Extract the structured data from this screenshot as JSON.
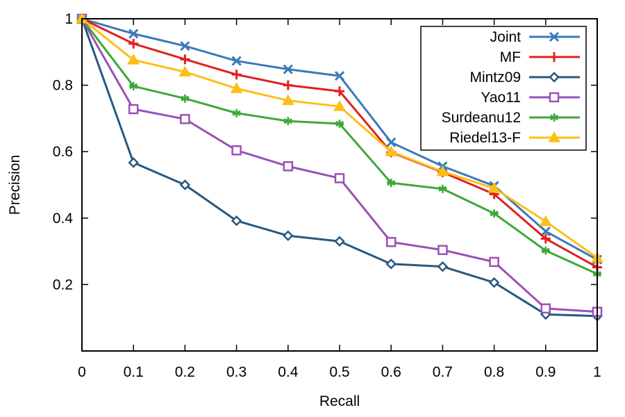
{
  "chart_data": {
    "type": "line",
    "xlabel": "Recall",
    "ylabel": "Precision",
    "xlim": [
      0,
      1
    ],
    "ylim": [
      0,
      1
    ],
    "x_ticks": [
      0,
      0.1,
      0.2,
      0.3,
      0.4,
      0.5,
      0.6,
      0.7,
      0.8,
      0.9,
      1
    ],
    "x_tick_labels": [
      "0",
      "0.1",
      "0.2",
      "0.3",
      "0.4",
      "0.5",
      "0.6",
      "0.7",
      "0.8",
      "0.9",
      "1"
    ],
    "y_ticks": [
      0.2,
      0.4,
      0.6,
      0.8,
      1
    ],
    "y_tick_labels": [
      "0.2",
      "0.4",
      "0.6",
      "0.8",
      "1"
    ],
    "grid": false,
    "legend_position": "top-right",
    "x": [
      0,
      0.1,
      0.2,
      0.3,
      0.4,
      0.5,
      0.6,
      0.7,
      0.8,
      0.9,
      1
    ],
    "series": [
      {
        "name": "Joint",
        "color": "#3a7ab8",
        "marker": "x",
        "values": [
          1.0,
          0.955,
          0.918,
          0.873,
          0.848,
          0.828,
          0.628,
          0.556,
          0.497,
          0.36,
          0.275
        ]
      },
      {
        "name": "MF",
        "color": "#e02020",
        "marker": "plus",
        "values": [
          1.0,
          0.925,
          0.878,
          0.832,
          0.8,
          0.782,
          0.598,
          0.538,
          0.472,
          0.338,
          0.252
        ]
      },
      {
        "name": "Mintz09",
        "color": "#27587f",
        "marker": "diamond",
        "values": [
          1.0,
          0.567,
          0.5,
          0.392,
          0.347,
          0.33,
          0.262,
          0.254,
          0.206,
          0.11,
          0.105
        ]
      },
      {
        "name": "Yao11",
        "color": "#9a50b8",
        "marker": "square",
        "values": [
          1.0,
          0.728,
          0.698,
          0.604,
          0.556,
          0.52,
          0.328,
          0.304,
          0.268,
          0.128,
          0.118
        ]
      },
      {
        "name": "Surdeanu12",
        "color": "#3ea83a",
        "marker": "asterisk",
        "values": [
          1.0,
          0.797,
          0.76,
          0.716,
          0.692,
          0.684,
          0.506,
          0.488,
          0.414,
          0.302,
          0.232
        ]
      },
      {
        "name": "Riedel13-F",
        "color": "#fdbe16",
        "marker": "triangle",
        "values": [
          1.0,
          0.876,
          0.84,
          0.79,
          0.754,
          0.736,
          0.6,
          0.54,
          0.49,
          0.39,
          0.28
        ]
      }
    ]
  }
}
